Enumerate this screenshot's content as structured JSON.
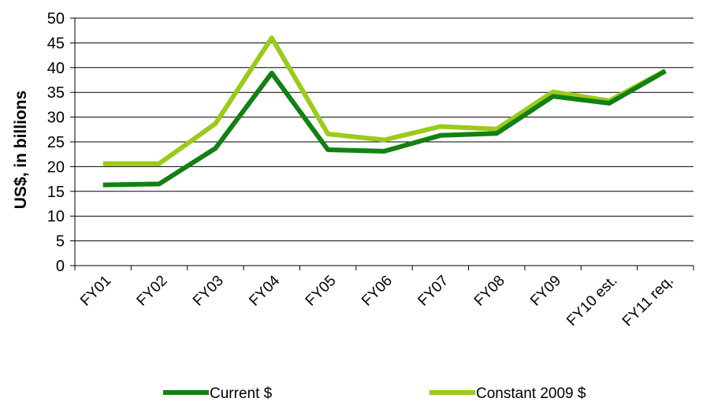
{
  "chart_data": {
    "type": "line",
    "title": "",
    "xlabel": "",
    "ylabel": "US$, in billions",
    "ylim": [
      0,
      50
    ],
    "y_ticks": [
      0,
      5,
      10,
      15,
      20,
      25,
      30,
      35,
      40,
      45,
      50
    ],
    "grid": "horizontal",
    "legend_position": "bottom",
    "categories": [
      "FY01",
      "FY02",
      "FY03",
      "FY04",
      "FY05",
      "FY06",
      "FY07",
      "FY08",
      "FY09",
      "FY10 est.",
      "FY11 req."
    ],
    "series": [
      {
        "name": "Current $",
        "color": "#138013",
        "values": [
          16.3,
          16.5,
          23.7,
          38.9,
          23.4,
          23.1,
          26.3,
          26.7,
          34.2,
          32.8,
          39.3
        ]
      },
      {
        "name": "Constant 2009 $",
        "color": "#9bcb19",
        "values": [
          20.6,
          20.6,
          28.7,
          46.0,
          26.6,
          25.4,
          28.1,
          27.6,
          35.1,
          33.3,
          39.4
        ]
      }
    ]
  }
}
